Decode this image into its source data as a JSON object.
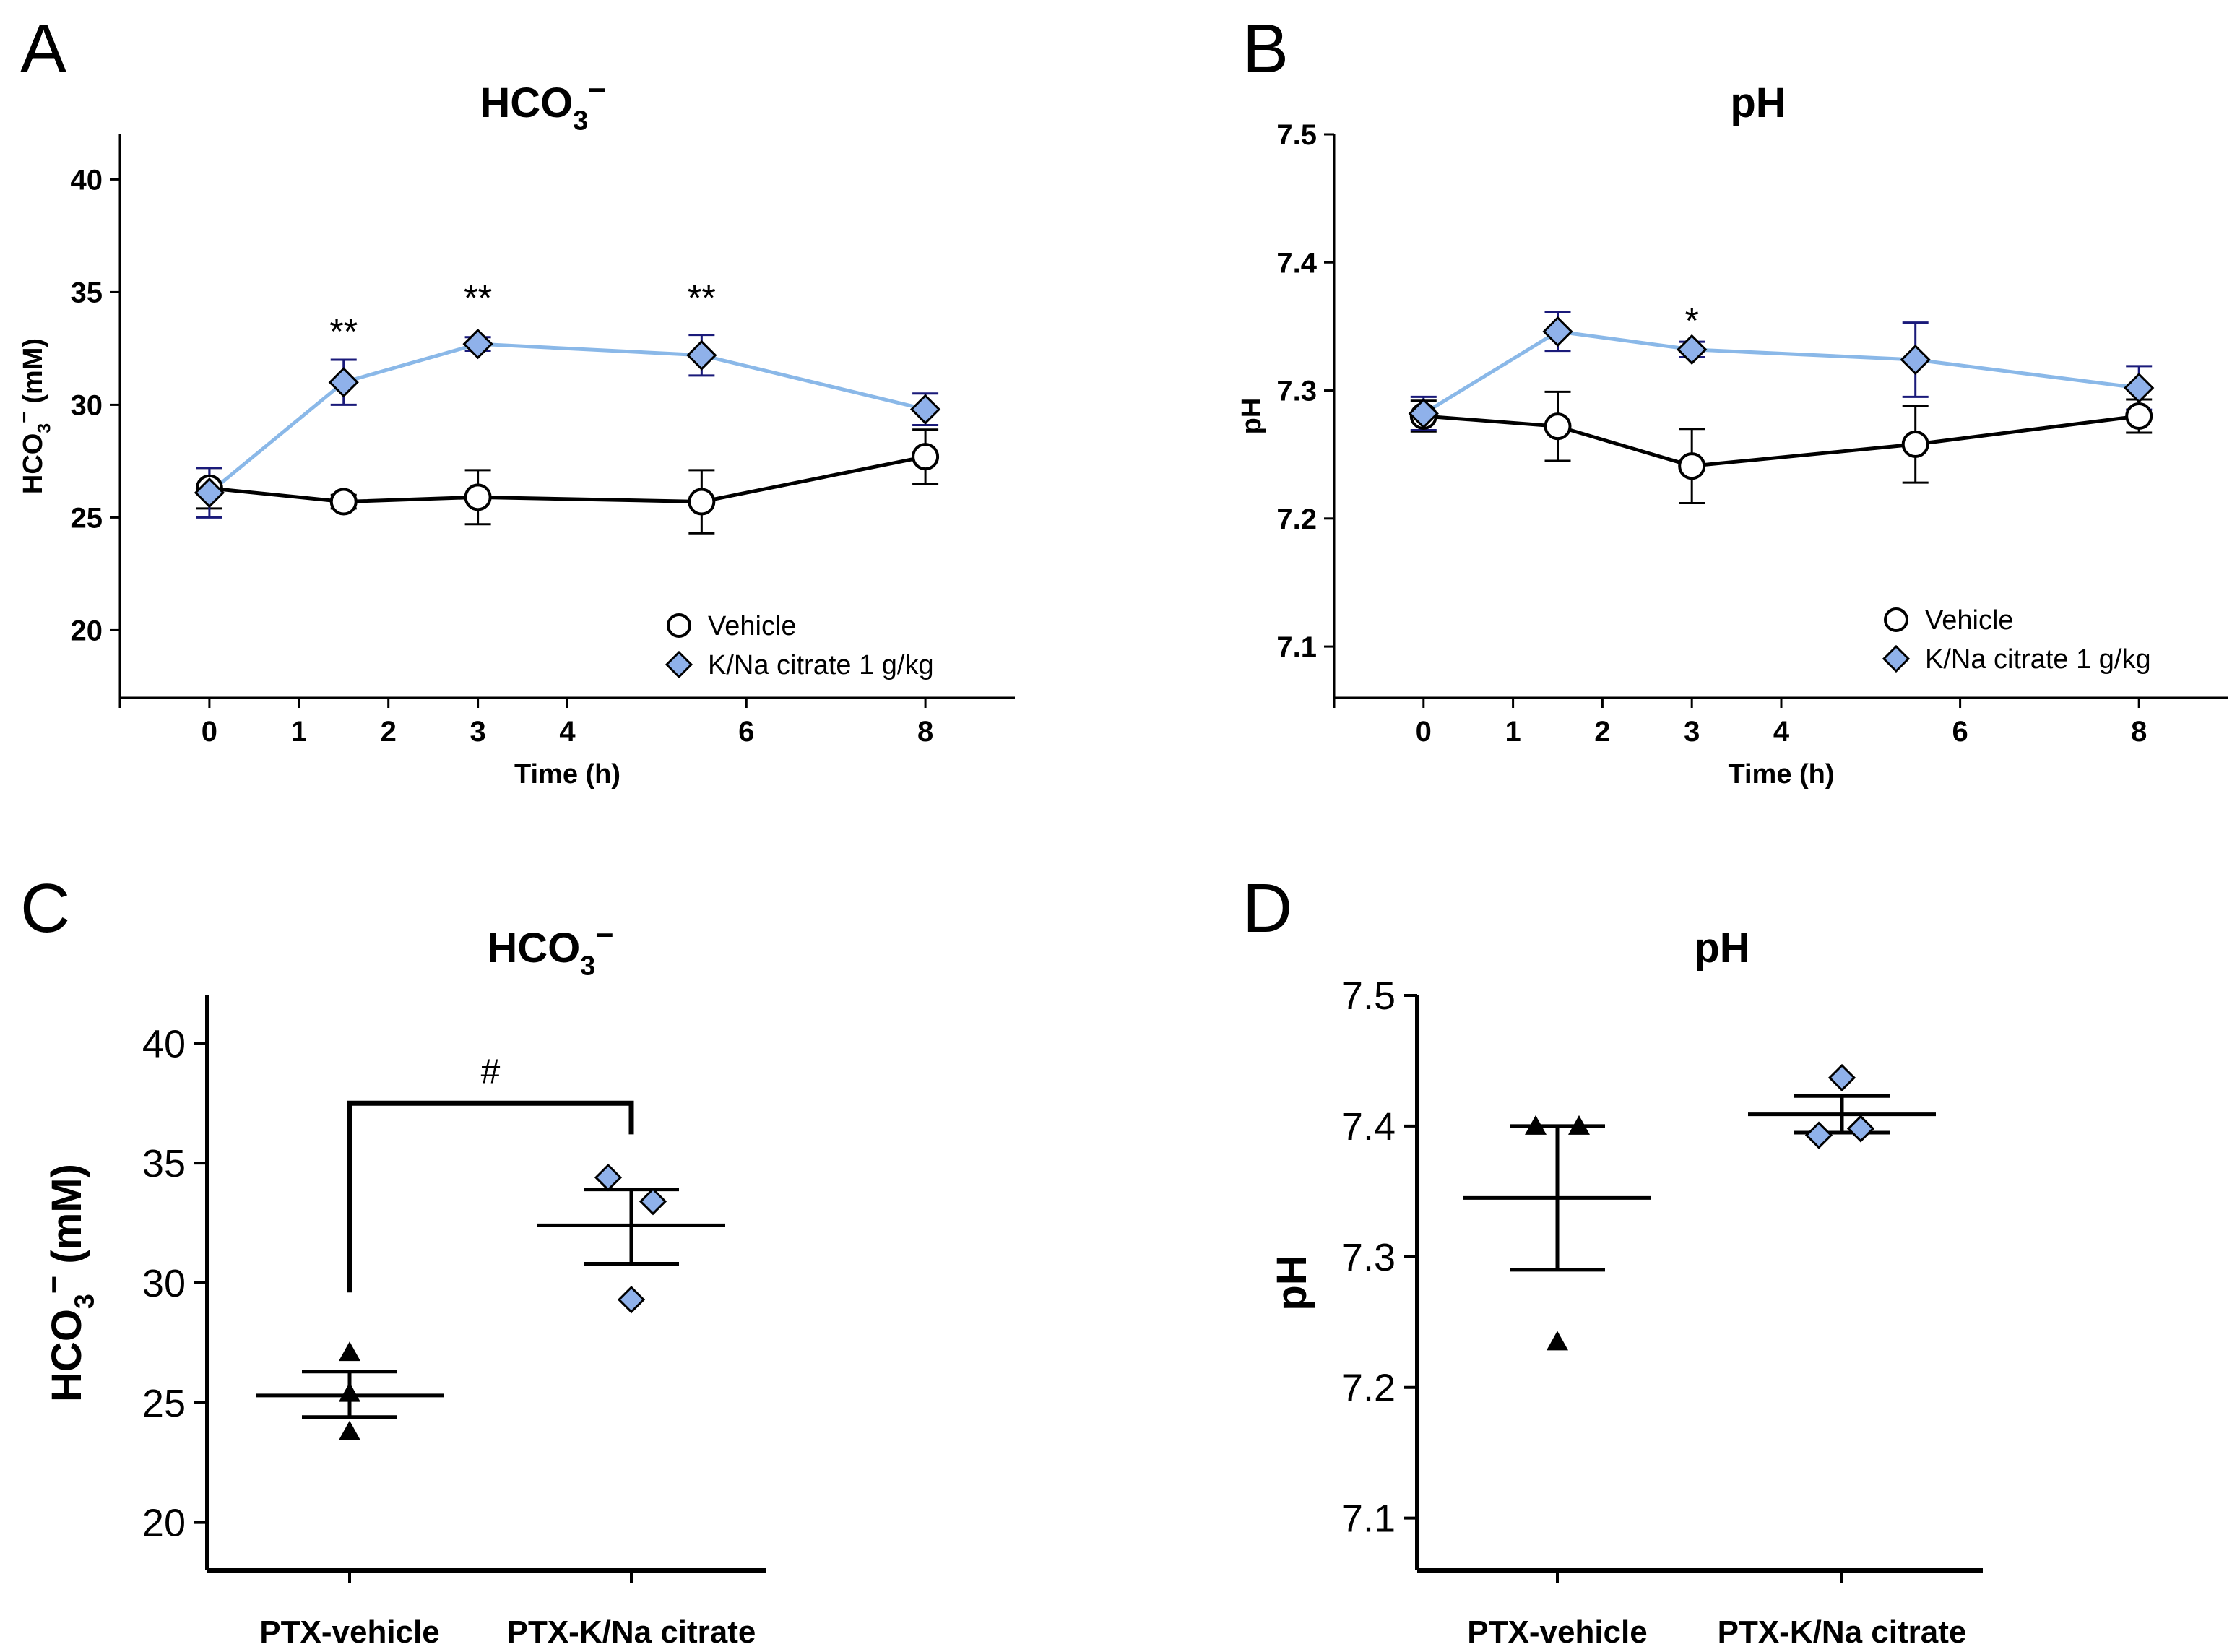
{
  "colors": {
    "vehicle_line": "#000000",
    "citrate_line": "#8ab8e8",
    "citrate_fill": "#8fb1ea",
    "citrate_error": "#1a1a7a",
    "axis": "#000000"
  },
  "icons": {
    "vehicle_marker": "open-circle-icon",
    "citrate_marker": "diamond-icon",
    "ptx_vehicle_marker": "triangle-icon"
  },
  "chart_data": [
    {
      "panel": "A",
      "type": "line",
      "title": {
        "main": "HCO",
        "sub": "3",
        "sup": "−"
      },
      "xlabel": "Time (h)",
      "ylabel": {
        "main": "HCO",
        "sub": "3",
        "sup": "−",
        "rest": " (mM)"
      },
      "xlim": [
        -1,
        9
      ],
      "ylim": [
        17,
        42
      ],
      "xticks": [
        0,
        1,
        2,
        3,
        4,
        6,
        8
      ],
      "xtick_labels": [
        "0",
        "1",
        "2",
        "3",
        "4",
        "6",
        "8"
      ],
      "yticks": [
        20,
        25,
        30,
        35,
        40
      ],
      "ytick_labels": [
        "20",
        "25",
        "30",
        "35",
        "40"
      ],
      "series": [
        {
          "name": "Vehicle",
          "x": [
            0,
            1.5,
            3,
            5.5,
            8
          ],
          "y": [
            26.3,
            25.7,
            25.9,
            25.7,
            27.7
          ],
          "err": [
            0.9,
            0.3,
            1.2,
            1.4,
            1.2
          ]
        },
        {
          "name": "K/Na citrate 1 g/kg",
          "x": [
            0,
            1.5,
            3,
            5.5,
            8
          ],
          "y": [
            26.1,
            31.0,
            32.7,
            32.2,
            29.8
          ],
          "err": [
            1.1,
            1.0,
            0.3,
            0.9,
            0.7
          ]
        }
      ],
      "annotations": [
        {
          "x": 1.5,
          "y": 32.7,
          "text": "**"
        },
        {
          "x": 3,
          "y": 34.2,
          "text": "**"
        },
        {
          "x": 5.5,
          "y": 34.2,
          "text": "**"
        }
      ],
      "legend": [
        "Vehicle",
        "K/Na citrate 1 g/kg"
      ],
      "legend_position": "bottom-right"
    },
    {
      "panel": "B",
      "type": "line",
      "title": "pH",
      "xlabel": "Time (h)",
      "ylabel": "pH",
      "xlim": [
        -1,
        9
      ],
      "ylim": [
        7.06,
        7.5
      ],
      "xticks": [
        0,
        1,
        2,
        3,
        4,
        6,
        8
      ],
      "xtick_labels": [
        "0",
        "1",
        "2",
        "3",
        "4",
        "6",
        "8"
      ],
      "yticks": [
        7.1,
        7.2,
        7.3,
        7.4,
        7.5
      ],
      "ytick_labels": [
        "7.1",
        "7.2",
        "7.3",
        "7.4",
        "7.5"
      ],
      "series": [
        {
          "name": "Vehicle",
          "x": [
            0,
            1.5,
            3,
            5.5,
            8
          ],
          "y": [
            7.28,
            7.272,
            7.241,
            7.258,
            7.28
          ],
          "err": [
            0.012,
            0.027,
            0.029,
            0.03,
            0.013
          ]
        },
        {
          "name": "K/Na citrate 1 g/kg",
          "x": [
            0,
            1.5,
            3,
            5.5,
            8
          ],
          "y": [
            7.282,
            7.346,
            7.332,
            7.324,
            7.302
          ],
          "err": [
            0.013,
            0.015,
            0.006,
            0.029,
            0.017
          ]
        }
      ],
      "annotations": [
        {
          "x": 3,
          "y": 7.345,
          "text": "*"
        }
      ],
      "legend": [
        "Vehicle",
        "K/Na citrate 1 g/kg"
      ],
      "legend_position": "bottom-right"
    },
    {
      "panel": "C",
      "type": "scatter",
      "title": {
        "main": "HCO",
        "sub": "3",
        "sup": "−"
      },
      "ylabel": {
        "main": "HCO",
        "sub": "3",
        "sup": "−",
        "rest": " (mM)"
      },
      "categories": [
        "PTX-vehicle",
        "PTX-K/Na citrate"
      ],
      "ylim": [
        18,
        42
      ],
      "yticks": [
        20,
        25,
        30,
        35,
        40
      ],
      "ytick_labels": [
        "20",
        "25",
        "30",
        "35",
        "40"
      ],
      "groups": [
        {
          "name": "PTX-vehicle",
          "points": [
            27.1,
            25.4,
            23.8
          ],
          "mean": 25.3,
          "sem_low": 24.4,
          "sem_high": 26.3
        },
        {
          "name": "PTX-K/Na citrate",
          "points": [
            34.4,
            33.4,
            29.3
          ],
          "mean": 32.4,
          "sem_low": 30.8,
          "sem_high": 33.9
        }
      ],
      "bracket": {
        "text": "#",
        "y": 37.5
      }
    },
    {
      "panel": "D",
      "type": "scatter",
      "title": "pH",
      "ylabel": "pH",
      "categories": [
        "PTX-vehicle",
        "PTX-K/Na citrate"
      ],
      "ylim": [
        7.06,
        7.5
      ],
      "yticks": [
        7.1,
        7.2,
        7.3,
        7.4,
        7.5
      ],
      "ytick_labels": [
        "7.1",
        "7.2",
        "7.3",
        "7.4",
        "7.5"
      ],
      "groups": [
        {
          "name": "PTX-vehicle",
          "points": [
            7.4,
            7.4,
            7.235
          ],
          "mean": 7.345,
          "sem_low": 7.29,
          "sem_high": 7.4
        },
        {
          "name": "PTX-K/Na citrate",
          "points": [
            7.437,
            7.398,
            7.393
          ],
          "mean": 7.409,
          "sem_low": 7.395,
          "sem_high": 7.423
        }
      ]
    }
  ]
}
